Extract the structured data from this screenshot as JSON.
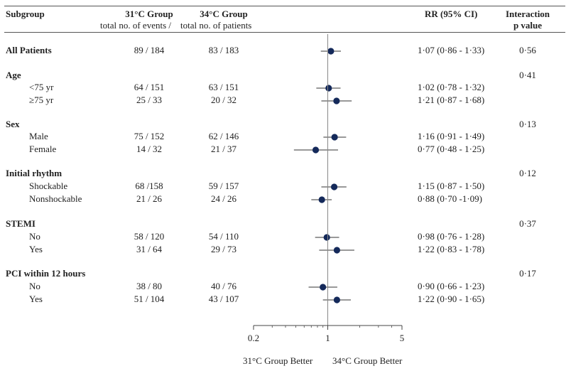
{
  "headers": {
    "subgroup": "Subgroup",
    "group_a": "31°C Group",
    "group_b": "34°C Group",
    "sub_a": "total no. of events /",
    "sub_b": "total no. of patients",
    "rr": "RR (95% CI)",
    "interaction_1": "Interaction",
    "interaction_2": "p value"
  },
  "footer": {
    "left_better": "31°C Group Better",
    "right_better": "34°C Group Better"
  },
  "chart_data": {
    "type": "forest",
    "x_scale": "log",
    "xlim": [
      0.2,
      5
    ],
    "reference_line": 1,
    "x_ticks": [
      "0.2",
      "1",
      "5"
    ],
    "rows": [
      {
        "kind": "header",
        "label": "All Patients",
        "a": "89 / 184",
        "b": "83 / 183",
        "rr_text": "1·07 (0·86 - 1·33)",
        "p": "0·56",
        "rr": 1.07,
        "lo": 0.86,
        "hi": 1.33
      },
      {
        "kind": "group",
        "label": "Age",
        "p": "0·41"
      },
      {
        "kind": "sub",
        "label": "<75 yr",
        "a": "64 / 151",
        "b": "63 / 151",
        "rr_text": "1·02 (0·78 - 1·32)",
        "rr": 1.02,
        "lo": 0.78,
        "hi": 1.32
      },
      {
        "kind": "sub",
        "label": "≥75 yr",
        "a": "25 / 33",
        "b": "20 / 32",
        "rr_text": "1·21 (0·87 - 1·68)",
        "rr": 1.21,
        "lo": 0.87,
        "hi": 1.68
      },
      {
        "kind": "group",
        "label": "Sex",
        "p": "0·13"
      },
      {
        "kind": "sub",
        "label": "Male",
        "a": "75 / 152",
        "b": "62 / 146",
        "rr_text": "1·16 (0·91 - 1·49)",
        "rr": 1.16,
        "lo": 0.91,
        "hi": 1.49
      },
      {
        "kind": "sub",
        "label": "Female",
        "a": "14 / 32",
        "b": "21 / 37",
        "rr_text": "0·77 (0·48 - 1·25)",
        "rr": 0.77,
        "lo": 0.48,
        "hi": 1.25
      },
      {
        "kind": "group",
        "label": "Initial rhythm",
        "p": "0·12"
      },
      {
        "kind": "sub",
        "label": "Shockable",
        "a": "68 /158",
        "b": "59 / 157",
        "rr_text": "1·15 (0·87 - 1·50)",
        "rr": 1.15,
        "lo": 0.87,
        "hi": 1.5
      },
      {
        "kind": "sub",
        "label": "Nonshockable",
        "a": "21 / 26",
        "b": "24 / 26",
        "rr_text": "0·88 (0·70 -1·09)",
        "rr": 0.88,
        "lo": 0.7,
        "hi": 1.09
      },
      {
        "kind": "group",
        "label": "STEMI",
        "p": "0·37"
      },
      {
        "kind": "sub",
        "label": "No",
        "a": "58 / 120",
        "b": "54 / 110",
        "rr_text": "0·98 (0·76 - 1·28)",
        "rr": 0.98,
        "lo": 0.76,
        "hi": 1.28
      },
      {
        "kind": "sub",
        "label": "Yes",
        "a": "31 / 64",
        "b": "29 / 73",
        "rr_text": "1·22 (0·83 - 1·78)",
        "rr": 1.22,
        "lo": 0.83,
        "hi": 1.78
      },
      {
        "kind": "group",
        "label": "PCI within 12 hours",
        "p": "0·17"
      },
      {
        "kind": "sub",
        "label": "No",
        "a": "38 / 80",
        "b": "40 / 76",
        "rr_text": "0·90 (0·66 - 1·23)",
        "rr": 0.9,
        "lo": 0.66,
        "hi": 1.23
      },
      {
        "kind": "sub",
        "label": "Yes",
        "a": "51 / 104",
        "b": "43 / 107",
        "rr_text": "1·22 (0·90 - 1·65)",
        "rr": 1.22,
        "lo": 0.9,
        "hi": 1.65
      }
    ],
    "colors": {
      "marker": "#14295a",
      "line": "#333333"
    }
  }
}
